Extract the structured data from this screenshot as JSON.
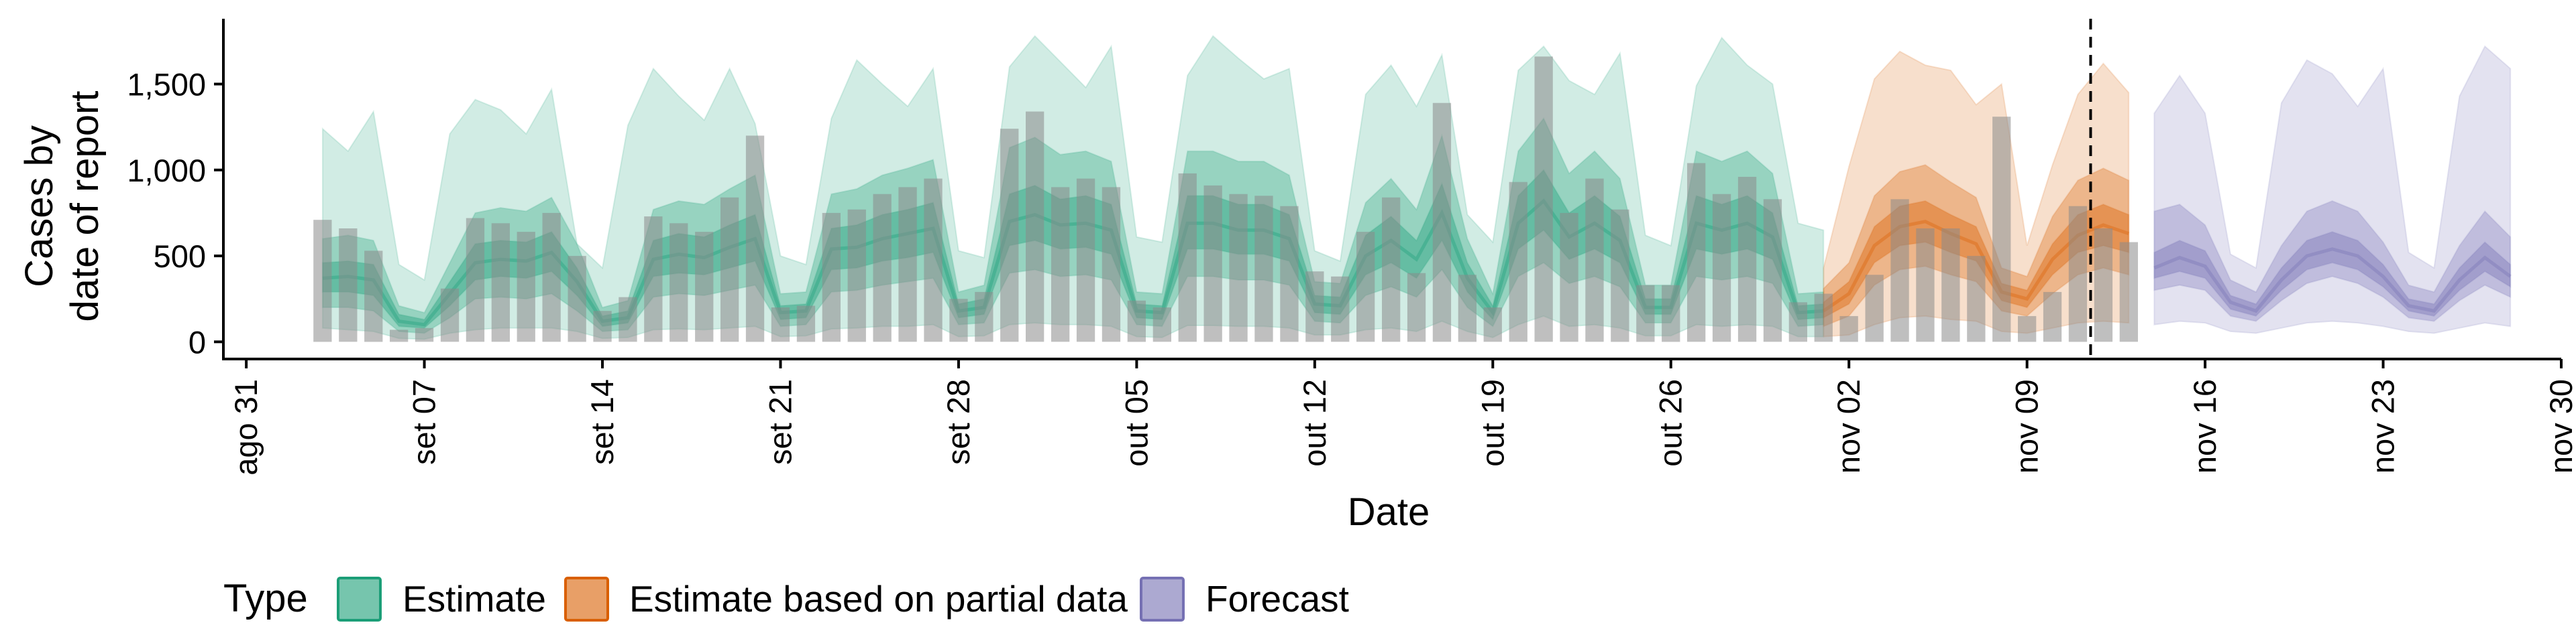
{
  "chart_data": {
    "type": "area",
    "title": "",
    "xlabel": "Date",
    "ylabel_lines": [
      "Cases by",
      "date of report"
    ],
    "ylim": [
      -100,
      1880
    ],
    "yticks": [
      0,
      500,
      1000,
      1500
    ],
    "ytick_labels": [
      "0",
      "500",
      "1,000",
      "1,500"
    ],
    "xlim": [
      -0.9,
      91.0
    ],
    "xticks": [
      0,
      7,
      14,
      21,
      28,
      35,
      42,
      49,
      56,
      63,
      70,
      77,
      84,
      91
    ],
    "xtick_labels": [
      "ago 31",
      "set 07",
      "set 14",
      "set 21",
      "set 28",
      "out 05",
      "out 12",
      "out 19",
      "out 26",
      "nov 02",
      "nov 09",
      "nov 16",
      "nov 23",
      "nov 30"
    ],
    "start_date": "2020-09-03",
    "bar_start_index": 3,
    "bars": [
      710,
      660,
      530,
      70,
      80,
      310,
      720,
      690,
      640,
      750,
      500,
      180,
      260,
      730,
      690,
      640,
      840,
      1200,
      200,
      210,
      750,
      770,
      860,
      900,
      950,
      250,
      290,
      1240,
      1340,
      900,
      950,
      900,
      240,
      200,
      980,
      910,
      860,
      850,
      790,
      410,
      380,
      640,
      840,
      400,
      1390,
      390,
      200,
      930,
      1660,
      750,
      950,
      770,
      330,
      330,
      1040,
      860,
      960,
      830,
      230,
      280,
      150,
      390,
      830,
      660,
      660,
      500,
      1310,
      150,
      290,
      790,
      660,
      580
    ],
    "cutoff_x": 72.5,
    "legend_title": "Type",
    "legend_position": "bottom",
    "series": [
      {
        "name": "Estimate",
        "color": "#1B9E77",
        "x_start": 3,
        "lo90": [
          80,
          70,
          60,
          20,
          15,
          50,
          70,
          80,
          80,
          80,
          60,
          20,
          25,
          70,
          75,
          70,
          80,
          90,
          30,
          35,
          75,
          80,
          90,
          90,
          100,
          30,
          35,
          100,
          110,
          100,
          100,
          90,
          30,
          25,
          95,
          95,
          90,
          90,
          80,
          40,
          40,
          70,
          80,
          60,
          120,
          60,
          25,
          100,
          150,
          90,
          100,
          80,
          35,
          35,
          100,
          90,
          100,
          90,
          30,
          30
        ],
        "lo50": [
          200,
          200,
          180,
          60,
          50,
          140,
          250,
          260,
          250,
          280,
          180,
          60,
          70,
          260,
          280,
          270,
          300,
          330,
          90,
          100,
          290,
          300,
          330,
          350,
          370,
          100,
          110,
          400,
          420,
          380,
          390,
          360,
          100,
          90,
          380,
          380,
          360,
          360,
          330,
          120,
          110,
          270,
          320,
          260,
          420,
          200,
          90,
          380,
          460,
          340,
          380,
          320,
          110,
          110,
          380,
          360,
          380,
          340,
          90,
          100
        ],
        "lo20": [
          290,
          290,
          270,
          90,
          80,
          210,
          360,
          380,
          370,
          410,
          270,
          90,
          110,
          380,
          400,
          390,
          430,
          470,
          130,
          140,
          420,
          430,
          470,
          490,
          520,
          140,
          160,
          560,
          590,
          540,
          550,
          510,
          140,
          130,
          540,
          540,
          510,
          510,
          470,
          170,
          160,
          390,
          460,
          370,
          590,
          290,
          130,
          540,
          650,
          480,
          540,
          460,
          160,
          160,
          540,
          510,
          540,
          480,
          130,
          140
        ],
        "med": [
          370,
          380,
          360,
          120,
          100,
          280,
          460,
          480,
          470,
          520,
          350,
          120,
          140,
          480,
          510,
          490,
          550,
          600,
          170,
          180,
          540,
          550,
          600,
          630,
          660,
          180,
          200,
          700,
          740,
          680,
          690,
          650,
          180,
          170,
          690,
          690,
          650,
          650,
          600,
          220,
          210,
          500,
          590,
          480,
          750,
          370,
          170,
          690,
          820,
          610,
          690,
          590,
          200,
          200,
          690,
          650,
          690,
          610,
          170,
          180
        ],
        "hi20": [
          460,
          470,
          450,
          160,
          130,
          350,
          570,
          590,
          580,
          640,
          430,
          150,
          180,
          590,
          630,
          610,
          680,
          740,
          210,
          220,
          660,
          680,
          740,
          770,
          810,
          220,
          250,
          860,
          910,
          830,
          850,
          800,
          220,
          210,
          850,
          850,
          800,
          800,
          740,
          270,
          260,
          620,
          730,
          590,
          920,
          460,
          210,
          850,
          1000,
          750,
          850,
          730,
          250,
          250,
          850,
          800,
          850,
          750,
          210,
          220
        ],
        "hi50": [
          600,
          620,
          590,
          210,
          170,
          460,
          750,
          780,
          760,
          840,
          570,
          200,
          240,
          770,
          820,
          800,
          890,
          970,
          280,
          290,
          860,
          890,
          970,
          1010,
          1060,
          290,
          330,
          1130,
          1190,
          1090,
          1110,
          1050,
          290,
          280,
          1110,
          1110,
          1050,
          1050,
          970,
          350,
          340,
          810,
          950,
          770,
          1200,
          600,
          280,
          1110,
          1300,
          980,
          1110,
          950,
          330,
          330,
          1110,
          1050,
          1110,
          980,
          280,
          290
        ],
        "hi90": [
          1240,
          1110,
          1340,
          450,
          360,
          1210,
          1410,
          1350,
          1210,
          1470,
          570,
          430,
          1260,
          1590,
          1430,
          1290,
          1590,
          1270,
          500,
          450,
          1300,
          1640,
          1500,
          1370,
          1590,
          530,
          490,
          1600,
          1780,
          1630,
          1480,
          1720,
          610,
          580,
          1550,
          1780,
          1650,
          1530,
          1590,
          530,
          470,
          1440,
          1610,
          1370,
          1670,
          740,
          580,
          1580,
          1720,
          1520,
          1440,
          1680,
          620,
          560,
          1490,
          1770,
          1610,
          1500,
          690,
          650
        ]
      },
      {
        "name": "Estimate based on partial data",
        "color": "#D95F02",
        "x_start": 62,
        "lo90": [
          30,
          40,
          100,
          140,
          150,
          130,
          120,
          60,
          50,
          80,
          110,
          120,
          110
        ],
        "lo50": [
          90,
          150,
          330,
          420,
          440,
          390,
          350,
          180,
          150,
          280,
          390,
          430,
          390
        ],
        "lo20": [
          140,
          220,
          460,
          560,
          580,
          520,
          470,
          240,
          200,
          390,
          520,
          560,
          520
        ],
        "med": [
          180,
          280,
          560,
          670,
          700,
          630,
          570,
          290,
          250,
          480,
          620,
          680,
          630
        ],
        "hi20": [
          230,
          350,
          670,
          790,
          820,
          740,
          670,
          340,
          300,
          570,
          740,
          800,
          740
        ],
        "hi50": [
          310,
          460,
          850,
          990,
          1030,
          930,
          840,
          430,
          380,
          730,
          940,
          1010,
          940
        ],
        "hi90": [
          430,
          1020,
          1530,
          1690,
          1610,
          1580,
          1380,
          1500,
          560,
          1030,
          1440,
          1620,
          1450
        ]
      },
      {
        "name": "Forecast",
        "color": "#7570B3",
        "x_start": 75,
        "lo90": [
          100,
          120,
          110,
          60,
          50,
          80,
          110,
          120,
          110,
          90,
          60,
          50,
          80,
          110,
          90
        ],
        "lo50": [
          300,
          330,
          300,
          150,
          120,
          240,
          340,
          380,
          340,
          260,
          140,
          120,
          240,
          330,
          260
        ],
        "lo20": [
          370,
          410,
          370,
          190,
          150,
          300,
          420,
          460,
          420,
          320,
          180,
          150,
          300,
          410,
          320
        ],
        "med": [
          430,
          490,
          440,
          230,
          180,
          360,
          500,
          540,
          500,
          380,
          210,
          180,
          360,
          490,
          380
        ],
        "hi20": [
          520,
          590,
          530,
          270,
          220,
          430,
          590,
          640,
          590,
          450,
          250,
          220,
          430,
          580,
          450
        ],
        "hi50": [
          760,
          800,
          680,
          360,
          290,
          560,
          760,
          820,
          760,
          580,
          330,
          290,
          560,
          760,
          610
        ],
        "hi90": [
          1330,
          1550,
          1330,
          510,
          430,
          1390,
          1640,
          1560,
          1370,
          1590,
          520,
          430,
          1430,
          1720,
          1590
        ]
      }
    ]
  }
}
